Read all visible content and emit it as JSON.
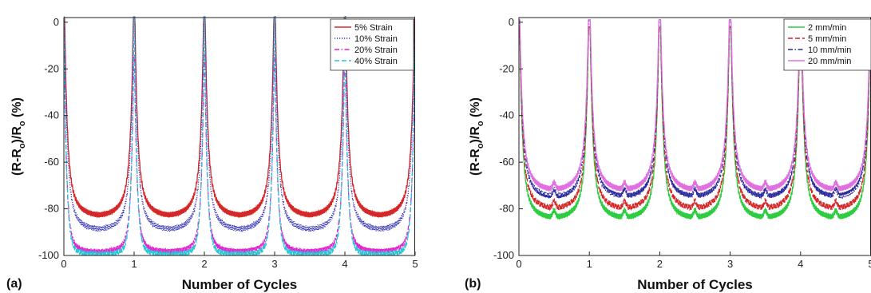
{
  "chart_data": [
    {
      "type": "line",
      "panel_label": "(a)",
      "xlabel": "Number of Cycles",
      "ylabel": "(R-R",
      "ylabel_sub": "o",
      "ylabel_mid": ")/R",
      "ylabel_sub2": "o",
      "ylabel_end": " (%)",
      "xlim": [
        0,
        5
      ],
      "ylim": [
        -100,
        2
      ],
      "xticks": [
        0,
        1,
        2,
        3,
        4,
        5
      ],
      "yticks": [
        0,
        -20,
        -40,
        -60,
        -80,
        -100
      ],
      "legend_position": "top-right",
      "series": [
        {
          "name": "5% Strain",
          "color": "#d62728",
          "dash": "solid",
          "min": -83,
          "peak": 2,
          "shoulder": -35
        },
        {
          "name": "10% Strain",
          "color": "#3a3ab8",
          "dash": "dotted",
          "min": -89,
          "peak": 3,
          "shoulder": -45
        },
        {
          "name": "20% Strain",
          "color": "#e020d0",
          "dash": "dashdot",
          "min": -98.5,
          "peak": -14,
          "shoulder": -80
        },
        {
          "name": "40% Strain",
          "color": "#29c4d4",
          "dash": "dashed",
          "min": -99.5,
          "peak": 3,
          "shoulder": -90
        }
      ]
    },
    {
      "type": "line",
      "panel_label": "(b)",
      "xlabel": "Number of Cycles",
      "ylabel": "(R-R",
      "ylabel_sub": "o",
      "ylabel_mid": ")/R",
      "ylabel_sub2": "o",
      "ylabel_end": " (%)",
      "xlim": [
        0,
        5
      ],
      "ylim": [
        -100,
        2
      ],
      "xticks": [
        0,
        1,
        2,
        3,
        4,
        5
      ],
      "yticks": [
        0,
        -20,
        -40,
        -60,
        -80,
        -100
      ],
      "legend_position": "top-right",
      "series": [
        {
          "name": "2 mm/min",
          "color": "#2ecc40",
          "dash": "solid",
          "min": -84,
          "peak": -2,
          "shoulder": -40
        },
        {
          "name": "5 mm/min",
          "color": "#d62728",
          "dash": "dashed",
          "min": -80,
          "peak": -2,
          "shoulder": -35
        },
        {
          "name": "10 mm/min",
          "color": "#2a2a9e",
          "dash": "dashdot",
          "min": -75,
          "peak": 1,
          "shoulder": -30
        },
        {
          "name": "20 mm/min",
          "color": "#e070e0",
          "dash": "solid",
          "min": -72,
          "peak": 1,
          "shoulder": -25
        }
      ]
    }
  ]
}
